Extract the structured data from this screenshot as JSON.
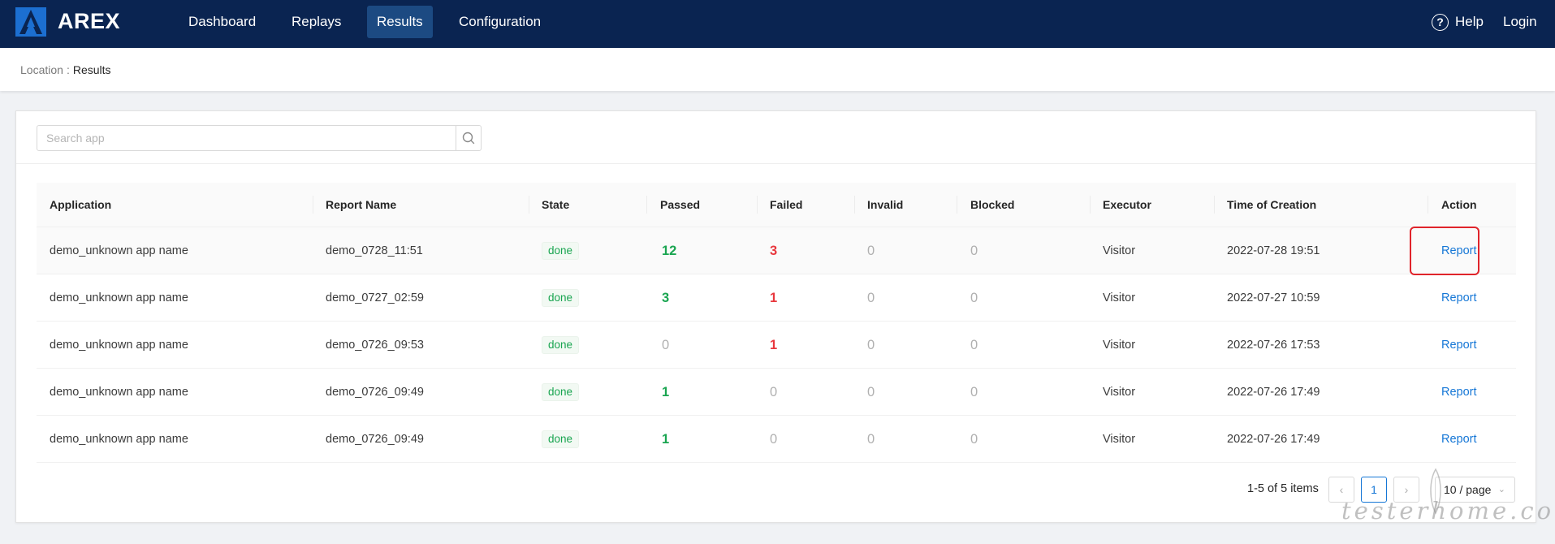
{
  "header": {
    "app_name": "AREX",
    "nav": [
      "Dashboard",
      "Replays",
      "Results",
      "Configuration"
    ],
    "active_nav": "Results",
    "help_label": "Help",
    "login_label": "Login"
  },
  "breadcrumb": {
    "location_label": "Location",
    "separator": ":",
    "current": "Results"
  },
  "search": {
    "placeholder": "Search app",
    "value": ""
  },
  "table": {
    "columns": [
      "Application",
      "Report Name",
      "State",
      "Passed",
      "Failed",
      "Invalid",
      "Blocked",
      "Executor",
      "Time of Creation",
      "Action"
    ],
    "rows": [
      {
        "application": "demo_unknown app name",
        "report_name": "demo_0728_11:51",
        "state": "done",
        "passed": "12",
        "failed": "3",
        "invalid": "0",
        "blocked": "0",
        "executor": "Visitor",
        "time": "2022-07-28 19:51",
        "action": "Report"
      },
      {
        "application": "demo_unknown app name",
        "report_name": "demo_0727_02:59",
        "state": "done",
        "passed": "3",
        "failed": "1",
        "invalid": "0",
        "blocked": "0",
        "executor": "Visitor",
        "time": "2022-07-27 10:59",
        "action": "Report"
      },
      {
        "application": "demo_unknown app name",
        "report_name": "demo_0726_09:53",
        "state": "done",
        "passed": "0",
        "failed": "1",
        "invalid": "0",
        "blocked": "0",
        "executor": "Visitor",
        "time": "2022-07-26 17:53",
        "action": "Report"
      },
      {
        "application": "demo_unknown app name",
        "report_name": "demo_0726_09:49",
        "state": "done",
        "passed": "1",
        "failed": "0",
        "invalid": "0",
        "blocked": "0",
        "executor": "Visitor",
        "time": "2022-07-26 17:49",
        "action": "Report"
      },
      {
        "application": "demo_unknown app name",
        "report_name": "demo_0726_09:49",
        "state": "done",
        "passed": "1",
        "failed": "0",
        "invalid": "0",
        "blocked": "0",
        "executor": "Visitor",
        "time": "2022-07-26 17:49",
        "action": "Report"
      }
    ]
  },
  "pagination": {
    "total_text": "1-5 of 5 items",
    "prev_icon": "chevron-left-icon",
    "current_page": "1",
    "next_icon": "chevron-right-icon",
    "page_size": "10 / page"
  },
  "watermark": "testerhome.com",
  "colors": {
    "header_bg": "#0a2451",
    "active_nav_bg": "#1c4a82",
    "passed": "#1aa551",
    "failed": "#e8373d",
    "link": "#1677d6",
    "highlight_box": "#e0242b"
  }
}
